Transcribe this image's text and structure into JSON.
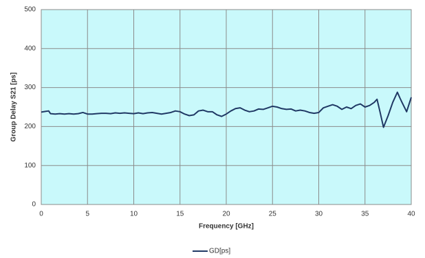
{
  "chart_data": {
    "type": "line",
    "xlabel": "Frequency [GHz]",
    "ylabel": "Group Delay S21 [ps]",
    "xlim": [
      0,
      40
    ],
    "xticks": [
      0,
      5,
      10,
      15,
      20,
      25,
      30,
      35,
      40
    ],
    "ylim": [
      0,
      500
    ],
    "yticks": [
      0,
      100,
      200,
      300,
      400,
      500
    ],
    "grid": true,
    "legend": "bottom",
    "plot_background": "#c9f9fb",
    "x": [
      0,
      0.5,
      0.8,
      1,
      1.5,
      2,
      2.5,
      3,
      3.5,
      4,
      4.5,
      5,
      5.5,
      6,
      6.5,
      7,
      7.5,
      8,
      8.5,
      9,
      9.5,
      10,
      10.5,
      11,
      11.5,
      12,
      12.5,
      13,
      13.5,
      14,
      14.5,
      15,
      15.5,
      16,
      16.5,
      17,
      17.5,
      18,
      18.5,
      19,
      19.5,
      20,
      20.5,
      21,
      21.5,
      22,
      22.5,
      23,
      23.5,
      24,
      24.5,
      25,
      25.5,
      26,
      26.5,
      27,
      27.5,
      28,
      28.5,
      29,
      29.5,
      30,
      30.5,
      31,
      31.5,
      32,
      32.5,
      33,
      33.5,
      34,
      34.5,
      35,
      35.5,
      36,
      36.3,
      36.6,
      37,
      37.5,
      38,
      38.5,
      38.8,
      39,
      39.5,
      40
    ],
    "series": [
      {
        "name": "GD[ps]",
        "color": "#1f3864",
        "values": [
          237,
          239,
          240,
          233,
          232,
          233,
          232,
          233,
          232,
          233,
          236,
          232,
          232,
          233,
          234,
          234,
          233,
          235,
          234,
          235,
          234,
          233,
          235,
          233,
          235,
          236,
          234,
          232,
          234,
          236,
          240,
          238,
          232,
          228,
          230,
          240,
          242,
          238,
          238,
          230,
          226,
          232,
          240,
          246,
          248,
          242,
          238,
          240,
          245,
          244,
          248,
          252,
          250,
          246,
          244,
          245,
          240,
          242,
          240,
          236,
          234,
          236,
          248,
          252,
          256,
          252,
          244,
          250,
          246,
          254,
          258,
          250,
          254,
          262,
          270,
          240,
          198,
          228,
          262,
          288,
          272,
          262,
          238,
          275
        ]
      }
    ]
  }
}
